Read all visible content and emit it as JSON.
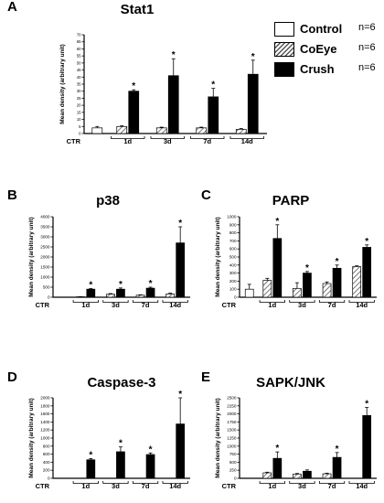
{
  "legend": {
    "items": [
      {
        "label": "Control",
        "n": "n=6",
        "color": "#ffffff"
      },
      {
        "label": "CoEye",
        "n": "n=6",
        "color": "hatched"
      },
      {
        "label": "Crush",
        "n": "n=6",
        "color": "#000000"
      }
    ]
  },
  "chart_data": [
    {
      "panel": "A",
      "type": "bar",
      "title": "Stat1",
      "ylabel": "Mean density (arbitrary unit)",
      "ylim": [
        0,
        70
      ],
      "yticks": [
        0,
        5,
        10,
        15,
        20,
        25,
        30,
        35,
        40,
        45,
        50,
        55,
        60,
        65,
        70
      ],
      "groups": [
        "CTR",
        "1d",
        "3d",
        "7d",
        "14d"
      ],
      "series": [
        {
          "name": "Control",
          "values": [
            4,
            null,
            null,
            null,
            null
          ],
          "errors": [
            1,
            null,
            null,
            null,
            null
          ]
        },
        {
          "name": "CoEye",
          "values": [
            null,
            5,
            4,
            4,
            3
          ],
          "errors": [
            null,
            0.5,
            0.5,
            0.5,
            0.5
          ]
        },
        {
          "name": "Crush",
          "values": [
            null,
            30,
            41,
            26,
            42
          ],
          "errors": [
            null,
            1,
            12,
            6,
            10
          ]
        }
      ],
      "significant": [
        [
          2,
          1
        ],
        [
          2,
          2
        ],
        [
          2,
          3
        ],
        [
          2,
          4
        ]
      ]
    },
    {
      "panel": "B",
      "type": "bar",
      "title": "p38",
      "ylabel": "Mean density (arbitrary unit)",
      "ylim": [
        0,
        4000
      ],
      "yticks": [
        0,
        500,
        1000,
        1500,
        2000,
        2500,
        3000,
        3500,
        4000
      ],
      "groups": [
        "CTR",
        "1d",
        "3d",
        "7d",
        "14d"
      ],
      "series": [
        {
          "name": "Control",
          "values": [
            0,
            null,
            null,
            null,
            null
          ],
          "errors": [
            0,
            null,
            null,
            null,
            null
          ]
        },
        {
          "name": "CoEye",
          "values": [
            null,
            20,
            150,
            100,
            160
          ],
          "errors": [
            null,
            10,
            30,
            20,
            40
          ]
        },
        {
          "name": "Crush",
          "values": [
            null,
            400,
            400,
            450,
            2700
          ],
          "errors": [
            null,
            30,
            60,
            50,
            800
          ]
        }
      ],
      "significant": [
        [
          2,
          1
        ],
        [
          2,
          2
        ],
        [
          2,
          3
        ],
        [
          2,
          4
        ]
      ]
    },
    {
      "panel": "C",
      "type": "bar",
      "title": "PARP",
      "ylabel": "Mean density (arbitrary unit)",
      "ylim": [
        0,
        1000
      ],
      "yticks": [
        0,
        100,
        200,
        300,
        400,
        500,
        600,
        700,
        800,
        900,
        1000
      ],
      "groups": [
        "CTR",
        "1d",
        "3d",
        "7d",
        "14d"
      ],
      "series": [
        {
          "name": "Control",
          "values": [
            100,
            null,
            null,
            null,
            null
          ],
          "errors": [
            60,
            null,
            null,
            null,
            null
          ]
        },
        {
          "name": "CoEye",
          "values": [
            null,
            210,
            110,
            170,
            380
          ],
          "errors": [
            null,
            25,
            70,
            20,
            10
          ]
        },
        {
          "name": "Crush",
          "values": [
            null,
            730,
            300,
            360,
            620
          ],
          "errors": [
            null,
            170,
            20,
            40,
            30
          ]
        }
      ],
      "significant": [
        [
          2,
          1
        ],
        [
          2,
          2
        ],
        [
          2,
          3
        ],
        [
          2,
          4
        ]
      ]
    },
    {
      "panel": "D",
      "type": "bar",
      "title": "Caspase-3",
      "ylabel": "Mean density (arbitrary unit)",
      "ylim": [
        0,
        2000
      ],
      "yticks": [
        0,
        200,
        400,
        600,
        800,
        1000,
        1200,
        1400,
        1600,
        1800,
        2000
      ],
      "groups": [
        "CTR",
        "1d",
        "3d",
        "7d",
        "14d"
      ],
      "series": [
        {
          "name": "Control",
          "values": [
            0,
            null,
            null,
            null,
            null
          ],
          "errors": [
            0,
            null,
            null,
            null,
            null
          ]
        },
        {
          "name": "CoEye",
          "values": [
            null,
            0,
            0,
            0,
            0
          ],
          "errors": [
            null,
            0,
            0,
            0,
            0
          ]
        },
        {
          "name": "Crush",
          "values": [
            null,
            460,
            660,
            590,
            1350
          ],
          "errors": [
            null,
            30,
            120,
            40,
            650
          ]
        }
      ],
      "significant": [
        [
          2,
          1
        ],
        [
          2,
          2
        ],
        [
          2,
          3
        ],
        [
          2,
          4
        ]
      ]
    },
    {
      "panel": "E",
      "type": "bar",
      "title": "SAPK/JNK",
      "ylabel": "Mean density (arbitrary unit)",
      "ylim": [
        0,
        2500
      ],
      "yticks": [
        0,
        250,
        500,
        750,
        1000,
        1250,
        1500,
        1750,
        2000,
        2250,
        2500
      ],
      "groups": [
        "CTR",
        "1d",
        "3d",
        "7d",
        "14d"
      ],
      "series": [
        {
          "name": "Control",
          "values": [
            0,
            null,
            null,
            null,
            null
          ],
          "errors": [
            0,
            null,
            null,
            null,
            null
          ]
        },
        {
          "name": "CoEye",
          "values": [
            null,
            170,
            130,
            140,
            0
          ],
          "errors": [
            null,
            20,
            20,
            20,
            0
          ]
        },
        {
          "name": "Crush",
          "values": [
            null,
            620,
            220,
            650,
            1950
          ],
          "errors": [
            null,
            200,
            40,
            150,
            250
          ]
        }
      ],
      "significant": [
        [
          2,
          1
        ],
        [
          2,
          3
        ],
        [
          2,
          4
        ]
      ]
    }
  ]
}
